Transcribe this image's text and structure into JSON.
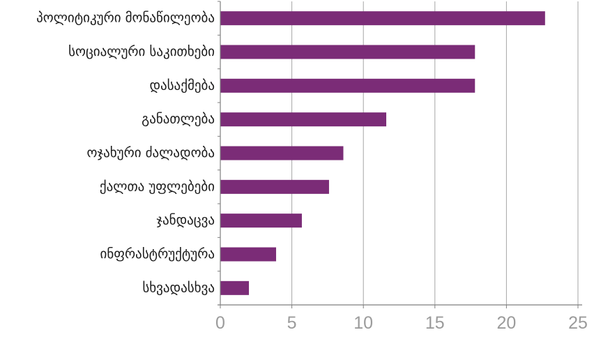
{
  "chart_data": {
    "type": "bar",
    "orientation": "horizontal",
    "categories": [
      "პოლიტიკური მონაწილეობა",
      "სოციალური საკითხები",
      "დასაქმება",
      "განათლება",
      "ოჯახური ძალადობა",
      "ქალთა უფლებები",
      "ჯანდაცვა",
      "ინფრასტრუქტურა",
      "სხვადასხვა"
    ],
    "values": [
      22.7,
      17.8,
      17.8,
      11.6,
      8.6,
      7.6,
      5.7,
      3.9,
      2.0
    ],
    "xlim": [
      0,
      25
    ],
    "xticks": [
      "0",
      "5",
      "10",
      "15",
      "20",
      "25"
    ],
    "xtick_values": [
      0,
      5,
      10,
      15,
      20,
      25
    ],
    "grid": "vertical",
    "bar_color": "#7b2c77",
    "grid_color": "#a6a6a6",
    "axis_color": "#7f7f7f",
    "title": "",
    "xlabel": "",
    "ylabel": ""
  }
}
